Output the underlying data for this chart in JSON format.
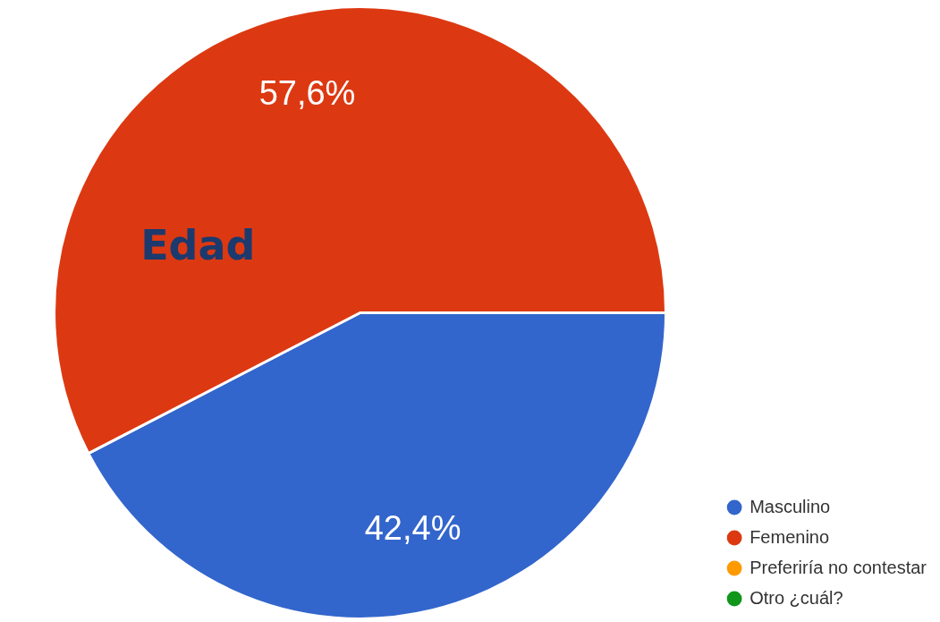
{
  "chart_data": {
    "type": "pie",
    "title": "Edad",
    "categories": [
      "Masculino",
      "Femenino",
      "Preferiría no contestar",
      "Otro ¿cuál?"
    ],
    "values": [
      42.4,
      57.6,
      0,
      0
    ],
    "colors": [
      "#3366cc",
      "#dc3912",
      "#ff9900",
      "#109618"
    ],
    "value_labels": [
      "42,4%",
      "57,6%",
      null,
      null
    ],
    "legend": "bottom right"
  }
}
